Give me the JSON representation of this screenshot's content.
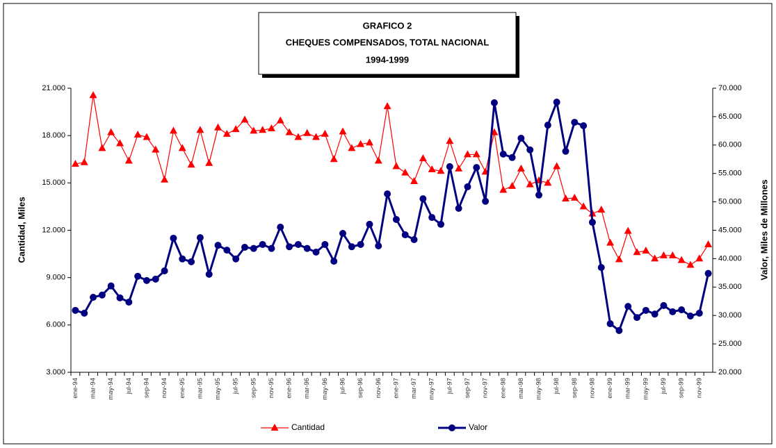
{
  "chart_data": {
    "type": "line",
    "title": [
      "GRAFICO 2",
      "CHEQUES COMPENSADOS, TOTAL NACIONAL",
      "1994-1999"
    ],
    "y_label": "Cantidad, Miles",
    "y2_label": "Valor, Miles de Millones",
    "legend": "bottom",
    "grid": false,
    "categories": [
      "ene-94",
      null,
      "mar-94",
      null,
      "may-94",
      null,
      "jul-94",
      null,
      "sep-94",
      null,
      "nov-94",
      null,
      "ene-95",
      null,
      "mar-95",
      null,
      "may-95",
      null,
      "jul-95",
      null,
      "sep-95",
      null,
      "nov-95",
      null,
      "ene-96",
      null,
      "mar-96",
      null,
      "may-96",
      null,
      "jul-96",
      null,
      "sep-96",
      null,
      "nov-96",
      null,
      "ene-97",
      null,
      "mar-97",
      null,
      "may-97",
      null,
      "jul-97",
      null,
      "sep-97",
      null,
      "nov-97",
      null,
      "ene-98",
      null,
      "mar-98",
      null,
      "may-98",
      null,
      "jul-98",
      null,
      "sep-98",
      null,
      "nov-98",
      null,
      "ene-99",
      null,
      "mar-99",
      null,
      "may-99",
      null,
      "jul-99",
      null,
      "sep-99",
      null,
      "nov-99",
      null
    ],
    "ylim": [
      3000,
      21000
    ],
    "yticks": [
      {
        "value": 3000,
        "label": "3.000"
      },
      {
        "value": 6000,
        "label": "6.000"
      },
      {
        "value": 9000,
        "label": "9.000"
      },
      {
        "value": 12000,
        "label": "12.000"
      },
      {
        "value": 15000,
        "label": "15.000"
      },
      {
        "value": 18000,
        "label": "18.000"
      },
      {
        "value": 21000,
        "label": "21.000"
      }
    ],
    "y2lim": [
      20000,
      70000
    ],
    "y2ticks": [
      {
        "value": 20000,
        "label": "20.000"
      },
      {
        "value": 25000,
        "label": "25.000"
      },
      {
        "value": 30000,
        "label": "30.000"
      },
      {
        "value": 35000,
        "label": "35.000"
      },
      {
        "value": 40000,
        "label": "40.000"
      },
      {
        "value": 45000,
        "label": "45.000"
      },
      {
        "value": 50000,
        "label": "50.000"
      },
      {
        "value": 55000,
        "label": "55.000"
      },
      {
        "value": 60000,
        "label": "60.000"
      },
      {
        "value": 65000,
        "label": "65.000"
      },
      {
        "value": 70000,
        "label": "70.000"
      }
    ],
    "series": [
      {
        "name": "Cantidad",
        "color": "#ff0000",
        "marker": "triangle",
        "values": [
          16200,
          16300,
          20550,
          17200,
          18200,
          17500,
          16400,
          18050,
          17900,
          17100,
          15200,
          18300,
          17200,
          16150,
          18350,
          16250,
          18500,
          18100,
          18400,
          19000,
          18300,
          18350,
          18450,
          18950,
          18200,
          17900,
          18150,
          17900,
          18100,
          16500,
          18250,
          17200,
          17450,
          17550,
          16400,
          19850,
          16050,
          15650,
          15100,
          16550,
          15850,
          15750,
          17650,
          15900,
          16800,
          16800,
          15700,
          18200,
          14550,
          14800,
          15900,
          14900,
          15150,
          15000,
          16050,
          14000,
          14050,
          13500,
          13050,
          13300,
          11200,
          10150,
          11950,
          10600,
          10700,
          10200,
          10400,
          10400,
          10100,
          9800,
          10200,
          11100
        ]
      },
      {
        "name": "Valor",
        "color": "#000080",
        "marker": "circle",
        "axis": "y2",
        "values": [
          30900,
          30400,
          33200,
          33600,
          35200,
          33100,
          32350,
          36900,
          36150,
          36400,
          37850,
          43600,
          39950,
          39450,
          43700,
          37250,
          42350,
          41500,
          39950,
          42000,
          41800,
          42500,
          41800,
          45550,
          42100,
          42500,
          41800,
          41150,
          42500,
          39550,
          44450,
          42100,
          42500,
          46050,
          42250,
          51400,
          46900,
          44200,
          43350,
          50550,
          47250,
          46050,
          56200,
          48850,
          52650,
          56050,
          50100,
          67450,
          58400,
          57800,
          61200,
          59150,
          51200,
          63500,
          67550,
          58900,
          64000,
          63400,
          46400,
          38450,
          28550,
          27350,
          31600,
          29650,
          30900,
          30250,
          31750,
          30650,
          31000,
          29900,
          30400,
          37400
        ]
      }
    ]
  }
}
